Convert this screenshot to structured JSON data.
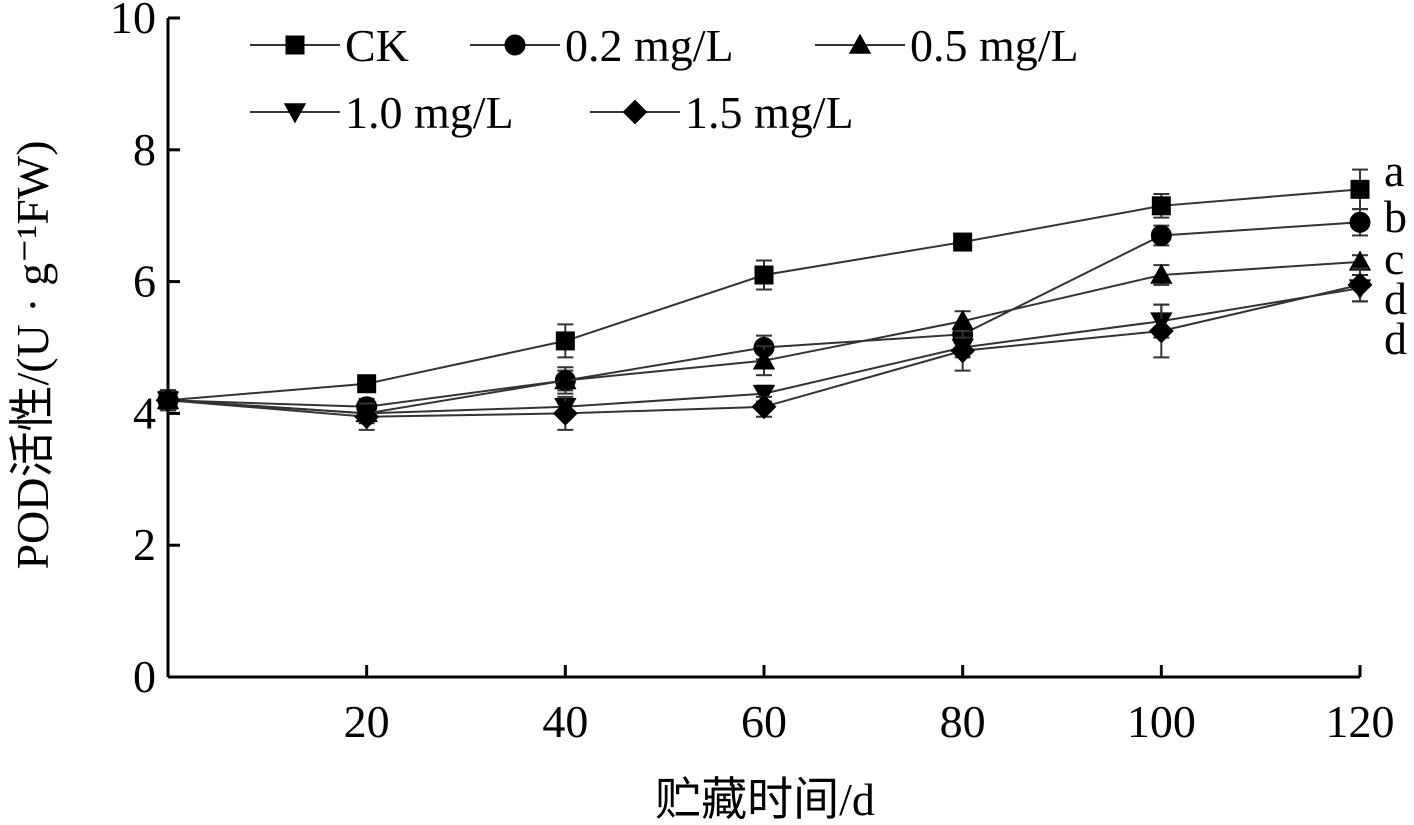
{
  "chart_data": {
    "type": "line",
    "xlabel": "贮藏时间/d",
    "ylabel": "POD活性/(U · g⁻¹FW)",
    "xlim": [
      0,
      120
    ],
    "ylim": [
      0,
      10
    ],
    "x_ticks": [
      "20",
      "40",
      "60",
      "80",
      "100",
      "120"
    ],
    "y_ticks": [
      "0",
      "2",
      "4",
      "6",
      "8",
      "10"
    ],
    "grid": false,
    "legend_position": "top-left",
    "x": [
      0,
      20,
      40,
      60,
      80,
      100,
      120
    ],
    "series": [
      {
        "name": "CK",
        "marker": "square",
        "values": [
          4.2,
          4.45,
          5.1,
          6.1,
          6.6,
          7.15,
          7.4
        ],
        "errors": [
          0.15,
          0.08,
          0.25,
          0.22,
          0.1,
          0.18,
          0.3
        ],
        "significance": "a"
      },
      {
        "name": "0.2 mg/L",
        "marker": "circle",
        "values": [
          4.2,
          4.1,
          4.5,
          5.0,
          5.2,
          6.7,
          6.9
        ],
        "errors": [
          0.15,
          0.12,
          0.15,
          0.18,
          0.12,
          0.15,
          0.2
        ],
        "significance": "b"
      },
      {
        "name": "0.5 mg/L",
        "marker": "triangle-up",
        "values": [
          4.2,
          4.0,
          4.5,
          4.8,
          5.4,
          6.1,
          6.3
        ],
        "errors": [
          0.15,
          0.15,
          0.2,
          0.22,
          0.15,
          0.15,
          0.1
        ],
        "significance": "c"
      },
      {
        "name": "1.0 mg/L",
        "marker": "triangle-down",
        "values": [
          4.2,
          4.0,
          4.1,
          4.3,
          5.0,
          5.4,
          5.9
        ],
        "errors": [
          0.15,
          0.1,
          0.12,
          0.12,
          0.15,
          0.25,
          0.2
        ],
        "significance": "d"
      },
      {
        "name": "1.5 mg/L",
        "marker": "diamond",
        "values": [
          4.2,
          3.95,
          4.0,
          4.1,
          4.95,
          5.25,
          5.95
        ],
        "errors": [
          0.15,
          0.2,
          0.25,
          0.15,
          0.3,
          0.4,
          0.25
        ],
        "significance": "d"
      }
    ]
  }
}
